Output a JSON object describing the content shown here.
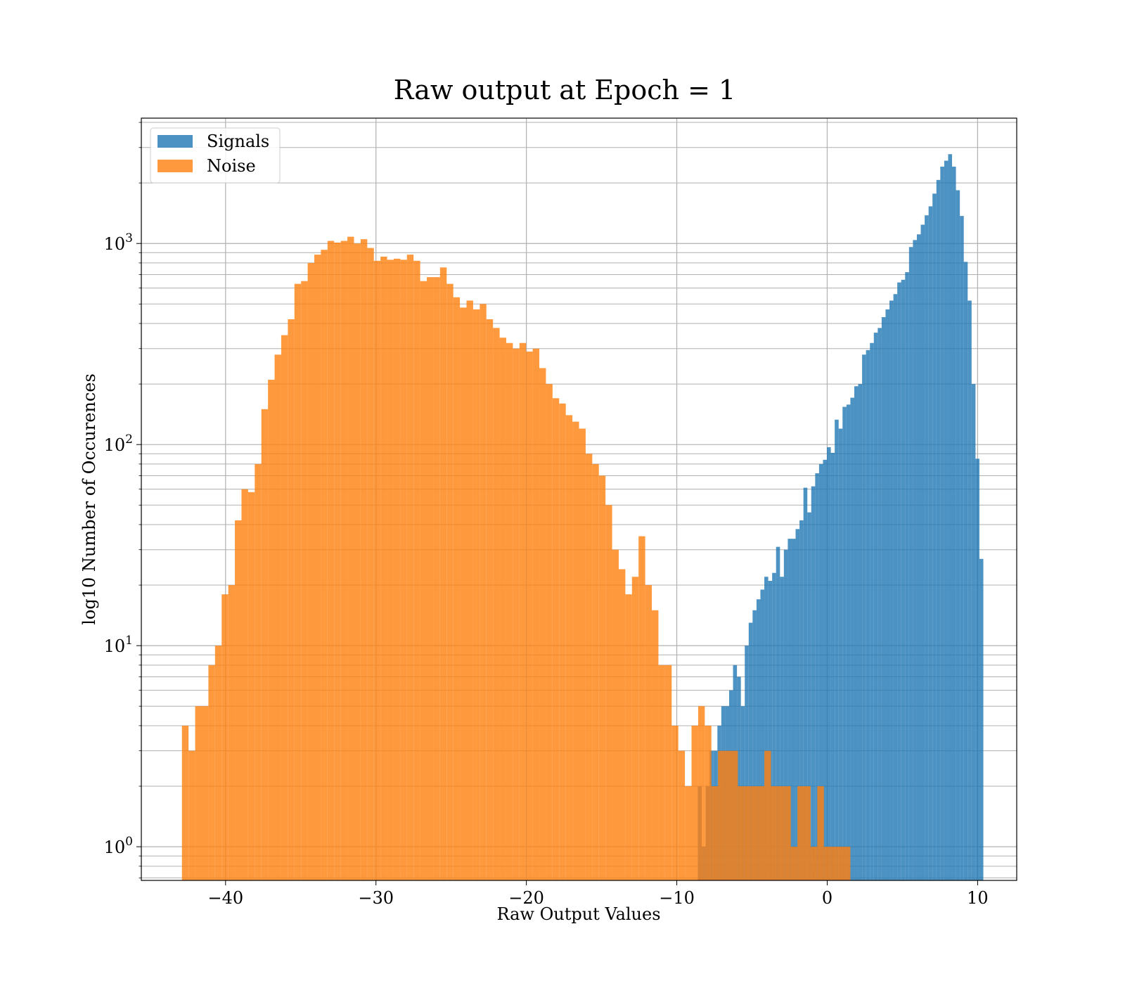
{
  "chart_data": {
    "type": "histogram",
    "title": "Raw output at Epoch = 1",
    "xlabel": "Raw Output Values",
    "ylabel": "log10 Number of Occurences",
    "x_scale": "linear",
    "y_scale": "log",
    "xlim": [
      -45.6,
      12.6
    ],
    "ylim": [
      0.68,
      4200
    ],
    "xticks": [
      -40,
      -30,
      -20,
      -10,
      0,
      10
    ],
    "xtick_labels": [
      "−40",
      "−30",
      "−20",
      "−10",
      "0",
      "10"
    ],
    "yticks": [
      1,
      10,
      100,
      1000
    ],
    "ytick_labels": [
      {
        "base": "10",
        "exp": "0"
      },
      {
        "base": "10",
        "exp": "1"
      },
      {
        "base": "10",
        "exp": "2"
      },
      {
        "base": "10",
        "exp": "3"
      }
    ],
    "grid": "both (major and minor)",
    "legend_position": "upper-left",
    "series": [
      {
        "name": "Signals",
        "color": "#1f77b4",
        "opacity": 0.8,
        "x_start": -8.6,
        "bin_width": 0.26,
        "counts": [
          2,
          1,
          2,
          3,
          3,
          4,
          5,
          5,
          6,
          8,
          7,
          5,
          10,
          13,
          15,
          17,
          19,
          22,
          21,
          23,
          31,
          22,
          30,
          34,
          34,
          38,
          42,
          61,
          46,
          62,
          72,
          80,
          84,
          97,
          91,
          133,
          120,
          154,
          158,
          171,
          195,
          200,
          280,
          295,
          320,
          360,
          380,
          430,
          470,
          520,
          560,
          640,
          660,
          720,
          960,
          1040,
          1110,
          1240,
          1380,
          1530,
          1770,
          2070,
          2410,
          2580,
          2780,
          2410,
          1840,
          1370,
          810,
          520,
          200,
          85,
          27
        ]
      },
      {
        "name": "Noise",
        "color": "#ff7f0e",
        "opacity": 0.8,
        "x_start": -42.9,
        "bin_width": 0.44,
        "counts": [
          4,
          3,
          5,
          5,
          8,
          10,
          18,
          20,
          42,
          60,
          58,
          80,
          150,
          210,
          280,
          350,
          420,
          630,
          650,
          800,
          880,
          930,
          1030,
          1010,
          1030,
          1080,
          1000,
          1050,
          950,
          820,
          860,
          830,
          840,
          830,
          880,
          820,
          650,
          680,
          680,
          760,
          630,
          540,
          480,
          520,
          470,
          500,
          420,
          380,
          340,
          320,
          300,
          320,
          290,
          300,
          240,
          200,
          170,
          160,
          140,
          130,
          120,
          90,
          80,
          70,
          50,
          30,
          24,
          18,
          22,
          35,
          20,
          15,
          8,
          8,
          4,
          3,
          2,
          4,
          5,
          4,
          2,
          3,
          3,
          3,
          2,
          2,
          2,
          2,
          3,
          2,
          2,
          2,
          1,
          2,
          2,
          1,
          2,
          1,
          1,
          1,
          1
        ]
      }
    ]
  }
}
